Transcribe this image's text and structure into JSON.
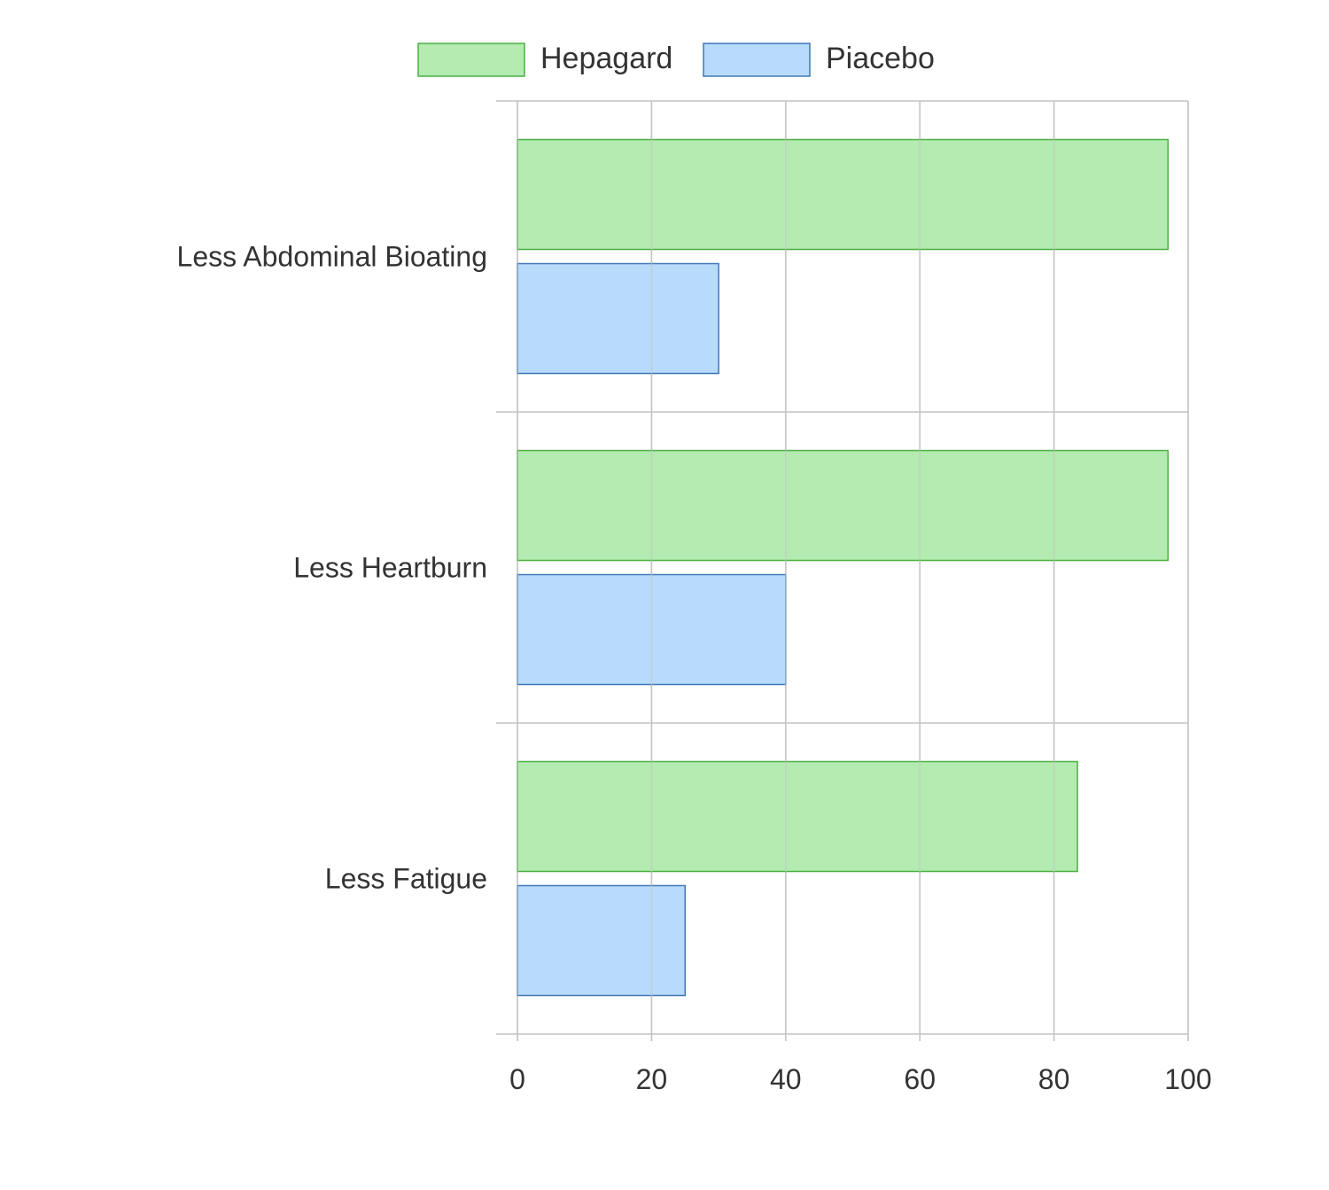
{
  "chart_data": {
    "type": "bar",
    "orientation": "horizontal",
    "categories": [
      "Less Abdominal Bioating",
      "Less Heartburn",
      "Less Fatigue"
    ],
    "series": [
      {
        "name": "Hepagard",
        "values": [
          97,
          97,
          83.5
        ],
        "fill": "#b3ebb0",
        "stroke": "#4cb043"
      },
      {
        "name": "Piacebo",
        "values": [
          30,
          40,
          25
        ],
        "fill": "#b8dbfb",
        "stroke": "#3f78b6"
      }
    ],
    "xlim": [
      0,
      100
    ],
    "xticks": [
      "0",
      "20",
      "40",
      "60",
      "80",
      "100"
    ],
    "grid": true,
    "legend_position": "top"
  }
}
